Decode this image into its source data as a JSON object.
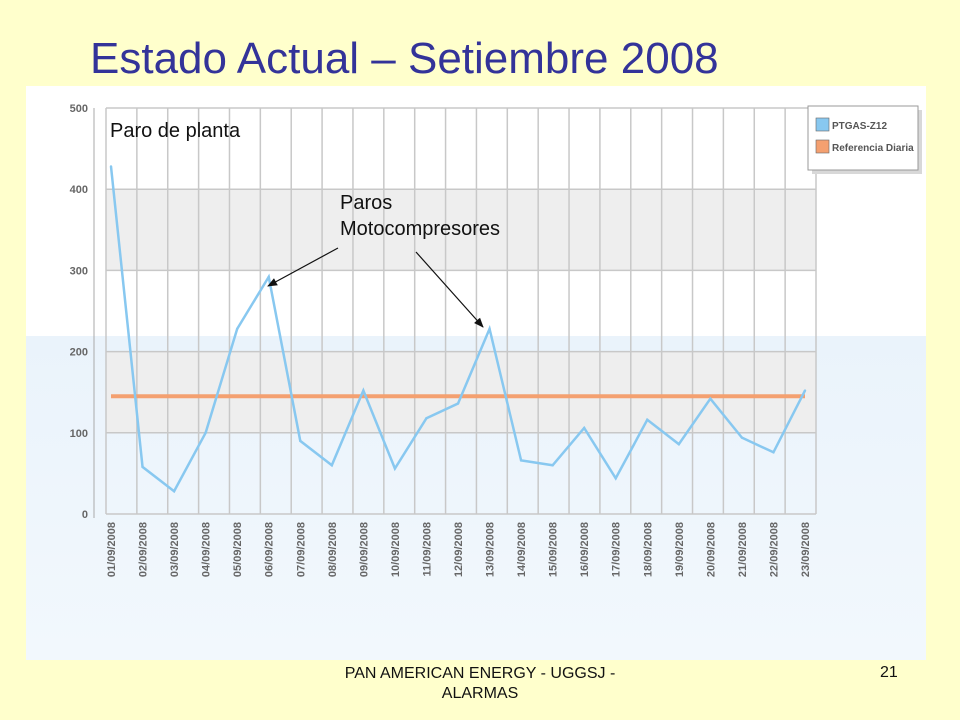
{
  "slide": {
    "title": "Estado Actual – Setiembre 2008",
    "footer": "PAN AMERICAN ENERGY - UGGSJ - ALARMAS",
    "page_number": "21"
  },
  "colors": {
    "title": "#333399",
    "background": "#ffffcc",
    "series_line": "#88c8f0",
    "reference_line": "#f4a070",
    "grid": "#c8c8c8"
  },
  "chart_data": {
    "type": "line",
    "title": "",
    "xlabel": "",
    "ylabel": "",
    "ylim": [
      0,
      500
    ],
    "yticks": [
      0,
      100,
      200,
      300,
      400,
      500
    ],
    "grid": true,
    "legend_position": "top-right",
    "categories": [
      "01/09/2008",
      "02/09/2008",
      "03/09/2008",
      "04/09/2008",
      "05/09/2008",
      "06/09/2008",
      "07/09/2008",
      "08/09/2008",
      "09/09/2008",
      "10/09/2008",
      "11/09/2008",
      "12/09/2008",
      "13/09/2008",
      "14/09/2008",
      "15/09/2008",
      "16/09/2008",
      "17/09/2008",
      "18/09/2008",
      "19/09/2008",
      "20/09/2008",
      "21/09/2008",
      "22/09/2008",
      "23/09/2008"
    ],
    "series": [
      {
        "name": "PTGAS-Z12",
        "color": "#88c8f0",
        "values": [
          428,
          58,
          28,
          100,
          228,
          292,
          90,
          60,
          152,
          56,
          118,
          136,
          228,
          66,
          60,
          106,
          44,
          116,
          86,
          142,
          94,
          76,
          152
        ]
      },
      {
        "name": "Referencia Diaria",
        "color": "#f4a070",
        "values": [
          145,
          145,
          145,
          145,
          145,
          145,
          145,
          145,
          145,
          145,
          145,
          145,
          145,
          145,
          145,
          145,
          145,
          145,
          145,
          145,
          145,
          145,
          145
        ]
      }
    ],
    "annotations": [
      {
        "text": "Paro de planta"
      },
      {
        "text": "Paros Motocompresores",
        "lines": [
          "Paros",
          "Motocompresores"
        ]
      }
    ]
  }
}
